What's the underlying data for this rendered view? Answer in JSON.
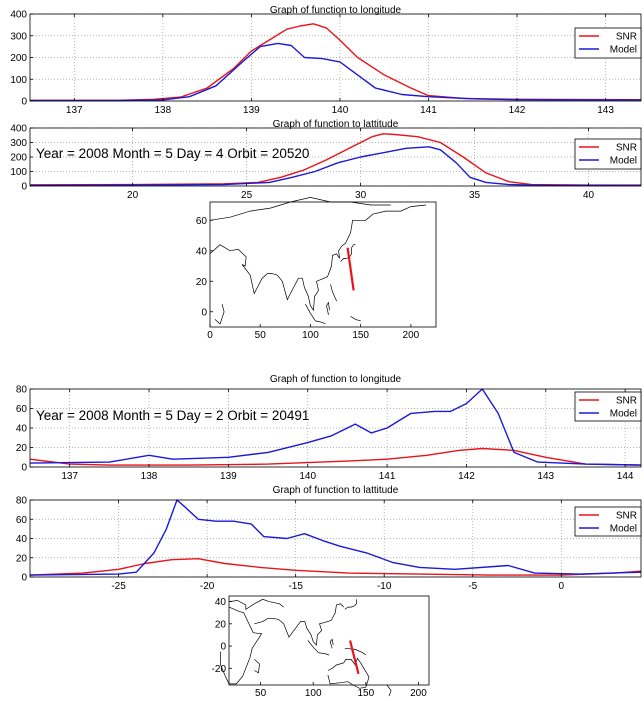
{
  "colors": {
    "snr": "#e8141b",
    "model": "#1a1ad8",
    "grid": "#9a9a9a",
    "axis": "#000000"
  },
  "chart_data": [
    {
      "type": "line",
      "title": "Graph of function to longitude",
      "annotation": "",
      "xlim": [
        136.5,
        143.4
      ],
      "ylim": [
        0,
        400
      ],
      "xticks": [
        137,
        138,
        139,
        140,
        141,
        142,
        143
      ],
      "yticks": [
        0,
        100,
        200,
        300,
        400
      ],
      "legend": {
        "location": "top-right",
        "entries": [
          "SNR",
          "Model"
        ]
      },
      "series": [
        {
          "name": "SNR",
          "color": "#e8141b",
          "points": [
            [
              136.5,
              3
            ],
            [
              137.5,
              3
            ],
            [
              137.9,
              8
            ],
            [
              138.2,
              18
            ],
            [
              138.5,
              60
            ],
            [
              138.8,
              150
            ],
            [
              139.0,
              230
            ],
            [
              139.2,
              280
            ],
            [
              139.4,
              330
            ],
            [
              139.55,
              345
            ],
            [
              139.7,
              355
            ],
            [
              139.85,
              335
            ],
            [
              140.0,
              280
            ],
            [
              140.2,
              200
            ],
            [
              140.5,
              120
            ],
            [
              140.8,
              60
            ],
            [
              141.0,
              25
            ],
            [
              141.4,
              12
            ],
            [
              142.0,
              8
            ],
            [
              143.4,
              6
            ]
          ]
        },
        {
          "name": "Model",
          "color": "#1a1ad8",
          "points": [
            [
              136.5,
              2
            ],
            [
              137.5,
              2
            ],
            [
              138.0,
              5
            ],
            [
              138.3,
              20
            ],
            [
              138.6,
              70
            ],
            [
              138.9,
              180
            ],
            [
              139.1,
              250
            ],
            [
              139.3,
              265
            ],
            [
              139.45,
              255
            ],
            [
              139.6,
              200
            ],
            [
              139.8,
              195
            ],
            [
              140.0,
              180
            ],
            [
              140.2,
              120
            ],
            [
              140.4,
              60
            ],
            [
              140.7,
              30
            ],
            [
              141.0,
              20
            ],
            [
              141.5,
              10
            ],
            [
              142.0,
              6
            ],
            [
              143.4,
              4
            ]
          ]
        }
      ]
    },
    {
      "type": "line",
      "title": "Graph of function to lattitude",
      "annotation": "Year = 2008   Month = 5   Day = 4   Orbit = 20520",
      "xlim": [
        15.5,
        42.3
      ],
      "ylim": [
        0,
        400
      ],
      "xticks": [
        20,
        25,
        30,
        35,
        40
      ],
      "yticks": [
        0,
        100,
        200,
        300,
        400
      ],
      "legend": {
        "location": "top-right",
        "entries": [
          "SNR",
          "Model"
        ]
      },
      "series": [
        {
          "name": "SNR",
          "color": "#e8141b",
          "points": [
            [
              15.5,
              8
            ],
            [
              20,
              10
            ],
            [
              24,
              15
            ],
            [
              25.5,
              25
            ],
            [
              26.5,
              60
            ],
            [
              27.5,
              110
            ],
            [
              28.5,
              180
            ],
            [
              29.5,
              260
            ],
            [
              30.5,
              340
            ],
            [
              31,
              360
            ],
            [
              31.5,
              355
            ],
            [
              32.5,
              340
            ],
            [
              33.5,
              300
            ],
            [
              34.5,
              200
            ],
            [
              35.5,
              90
            ],
            [
              36.5,
              30
            ],
            [
              37.5,
              10
            ],
            [
              40,
              6
            ],
            [
              42.3,
              6
            ]
          ]
        },
        {
          "name": "Model",
          "color": "#1a1ad8",
          "points": [
            [
              15.5,
              4
            ],
            [
              20,
              6
            ],
            [
              24,
              10
            ],
            [
              26,
              25
            ],
            [
              27,
              60
            ],
            [
              28,
              100
            ],
            [
              29,
              160
            ],
            [
              30,
              200
            ],
            [
              31,
              230
            ],
            [
              32,
              260
            ],
            [
              33,
              270
            ],
            [
              33.5,
              250
            ],
            [
              34.2,
              160
            ],
            [
              34.8,
              60
            ],
            [
              35.5,
              25
            ],
            [
              36.5,
              10
            ],
            [
              38,
              5
            ],
            [
              42.3,
              4
            ]
          ]
        }
      ]
    },
    {
      "type": "line",
      "title": "Graph of function to longitude",
      "annotation": "Year = 2008   Month = 5   Day = 2   Orbit = 20491",
      "xlim": [
        136.5,
        144.2
      ],
      "ylim": [
        0,
        80
      ],
      "xticks": [
        137,
        138,
        139,
        140,
        141,
        142,
        143,
        144
      ],
      "yticks": [
        0,
        20,
        40,
        60,
        80
      ],
      "legend": {
        "location": "top-right",
        "entries": [
          "SNR",
          "Model"
        ]
      },
      "series": [
        {
          "name": "SNR",
          "color": "#e8141b",
          "points": [
            [
              136.5,
              8
            ],
            [
              137.0,
              3
            ],
            [
              137.5,
              2
            ],
            [
              138.5,
              2
            ],
            [
              139.5,
              3
            ],
            [
              140.5,
              6
            ],
            [
              141.0,
              8
            ],
            [
              141.5,
              12
            ],
            [
              141.9,
              17
            ],
            [
              142.2,
              19
            ],
            [
              142.6,
              17
            ],
            [
              143.0,
              10
            ],
            [
              143.5,
              3
            ],
            [
              144.2,
              2
            ]
          ]
        },
        {
          "name": "Model",
          "color": "#1a1ad8",
          "points": [
            [
              136.5,
              4
            ],
            [
              137.5,
              5
            ],
            [
              138.0,
              12
            ],
            [
              138.3,
              8
            ],
            [
              139.0,
              10
            ],
            [
              139.5,
              15
            ],
            [
              140.0,
              25
            ],
            [
              140.3,
              32
            ],
            [
              140.6,
              44
            ],
            [
              140.8,
              35
            ],
            [
              141.0,
              40
            ],
            [
              141.3,
              55
            ],
            [
              141.6,
              57
            ],
            [
              141.8,
              57
            ],
            [
              142.0,
              65
            ],
            [
              142.2,
              80
            ],
            [
              142.4,
              55
            ],
            [
              142.6,
              15
            ],
            [
              142.9,
              5
            ],
            [
              143.5,
              3
            ],
            [
              144.2,
              2
            ]
          ]
        }
      ]
    },
    {
      "type": "line",
      "title": "Graph of function to lattitude",
      "annotation": "",
      "xlim": [
        -30,
        4.5
      ],
      "ylim": [
        0,
        80
      ],
      "xticks": [
        -25,
        -20,
        -15,
        -10,
        -5,
        0
      ],
      "yticks": [
        0,
        20,
        40,
        60,
        80
      ],
      "legend": {
        "location": "top-right",
        "entries": [
          "SNR",
          "Model"
        ]
      },
      "series": [
        {
          "name": "SNR",
          "color": "#e8141b",
          "points": [
            [
              -30,
              2
            ],
            [
              -27,
              4
            ],
            [
              -25,
              8
            ],
            [
              -23.5,
              14
            ],
            [
              -22,
              18
            ],
            [
              -20.5,
              19
            ],
            [
              -19,
              14
            ],
            [
              -17,
              10
            ],
            [
              -15,
              7
            ],
            [
              -12,
              4
            ],
            [
              -8,
              3
            ],
            [
              -4,
              2
            ],
            [
              0,
              2
            ],
            [
              3,
              4
            ],
            [
              4.5,
              6
            ]
          ]
        },
        {
          "name": "Model",
          "color": "#1a1ad8",
          "points": [
            [
              -30,
              2
            ],
            [
              -25,
              3
            ],
            [
              -24,
              5
            ],
            [
              -23,
              25
            ],
            [
              -22.3,
              50
            ],
            [
              -21.7,
              80
            ],
            [
              -21.2,
              72
            ],
            [
              -20.5,
              60
            ],
            [
              -19.5,
              58
            ],
            [
              -18.5,
              58
            ],
            [
              -17.5,
              55
            ],
            [
              -16.8,
              42
            ],
            [
              -15.5,
              40
            ],
            [
              -14.5,
              45
            ],
            [
              -13.5,
              38
            ],
            [
              -12.5,
              32
            ],
            [
              -11,
              25
            ],
            [
              -9.5,
              15
            ],
            [
              -8,
              10
            ],
            [
              -6,
              8
            ],
            [
              -3,
              12
            ],
            [
              -1.5,
              4
            ],
            [
              1,
              3
            ],
            [
              4.5,
              5
            ]
          ]
        }
      ]
    }
  ],
  "maps": [
    {
      "xticks": [
        0,
        50,
        100,
        150,
        200
      ],
      "yticks": [
        0,
        20,
        40,
        60
      ],
      "xlim": [
        0,
        225
      ],
      "ylim": [
        -10,
        72
      ],
      "track": {
        "color": "#e8141b",
        "from": [
          137,
          42
        ],
        "to": [
          143,
          14
        ]
      }
    },
    {
      "xticks": [
        50,
        100,
        150,
        200
      ],
      "yticks": [
        -20,
        0,
        20,
        40
      ],
      "xlim": [
        20,
        210
      ],
      "ylim": [
        -35,
        45
      ],
      "track": {
        "color": "#e8141b",
        "from": [
          135,
          5
        ],
        "to": [
          143,
          -25
        ]
      }
    }
  ]
}
